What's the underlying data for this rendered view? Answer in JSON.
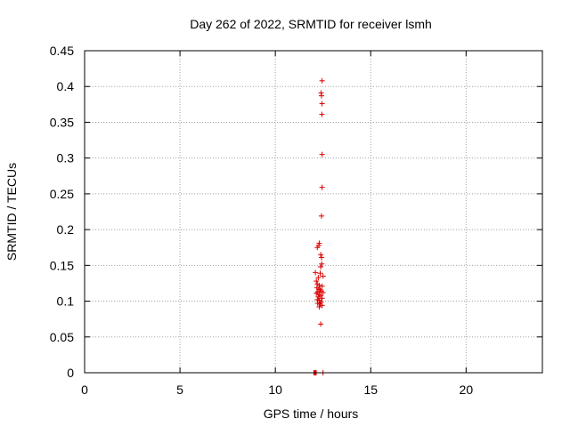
{
  "chart_data": {
    "type": "scatter",
    "title": "Day 262 of 2022, SRMTID for receiver lsmh",
    "xlabel": "GPS time / hours",
    "ylabel": "SRMTID / TECUs",
    "xlim": [
      0,
      24
    ],
    "ylim": [
      0,
      0.45
    ],
    "x_ticks": [
      0,
      5,
      10,
      15,
      20
    ],
    "x_tick_labels": [
      "0",
      "5",
      "10",
      "15",
      "20"
    ],
    "y_ticks": [
      0,
      0.05,
      0.1,
      0.15,
      0.2,
      0.25,
      0.3,
      0.35,
      0.4,
      0.45
    ],
    "y_tick_labels": [
      "0",
      "0.05",
      "0.1",
      "0.15",
      "0.2",
      "0.25",
      "0.3",
      "0.35",
      "0.4",
      "0.45"
    ],
    "grid": true,
    "marker": "plus",
    "series": [
      {
        "color": "#dd0000",
        "points": [
          [
            12.45,
            0.408
          ],
          [
            12.4,
            0.391
          ],
          [
            12.42,
            0.387
          ],
          [
            12.45,
            0.376
          ],
          [
            12.44,
            0.361
          ],
          [
            12.45,
            0.305
          ],
          [
            12.45,
            0.259
          ],
          [
            12.42,
            0.219
          ],
          [
            12.3,
            0.181
          ],
          [
            12.28,
            0.178
          ],
          [
            12.2,
            0.175
          ],
          [
            12.38,
            0.165
          ],
          [
            12.42,
            0.161
          ],
          [
            12.43,
            0.152
          ],
          [
            12.38,
            0.148
          ],
          [
            12.35,
            0.139
          ],
          [
            12.1,
            0.14
          ],
          [
            12.5,
            0.135
          ],
          [
            12.25,
            0.133
          ],
          [
            12.15,
            0.128
          ],
          [
            12.2,
            0.124
          ],
          [
            12.3,
            0.122
          ],
          [
            12.45,
            0.121
          ],
          [
            12.18,
            0.119
          ],
          [
            12.28,
            0.117
          ],
          [
            12.35,
            0.116
          ],
          [
            12.4,
            0.114
          ],
          [
            12.22,
            0.113
          ],
          [
            12.5,
            0.112
          ],
          [
            12.15,
            0.111
          ],
          [
            12.3,
            0.109
          ],
          [
            12.38,
            0.108
          ],
          [
            12.25,
            0.106
          ],
          [
            12.45,
            0.104
          ],
          [
            12.2,
            0.102
          ],
          [
            12.3,
            0.101
          ],
          [
            12.4,
            0.099
          ],
          [
            12.22,
            0.097
          ],
          [
            12.35,
            0.096
          ],
          [
            12.45,
            0.094
          ],
          [
            12.3,
            0.092
          ],
          [
            12.38,
            0.068
          ],
          [
            12.02,
            0.0
          ],
          [
            12.06,
            0.0
          ],
          [
            12.1,
            0.0
          ],
          [
            12.14,
            0.0
          ],
          [
            12.5,
            0.0
          ]
        ]
      }
    ]
  }
}
